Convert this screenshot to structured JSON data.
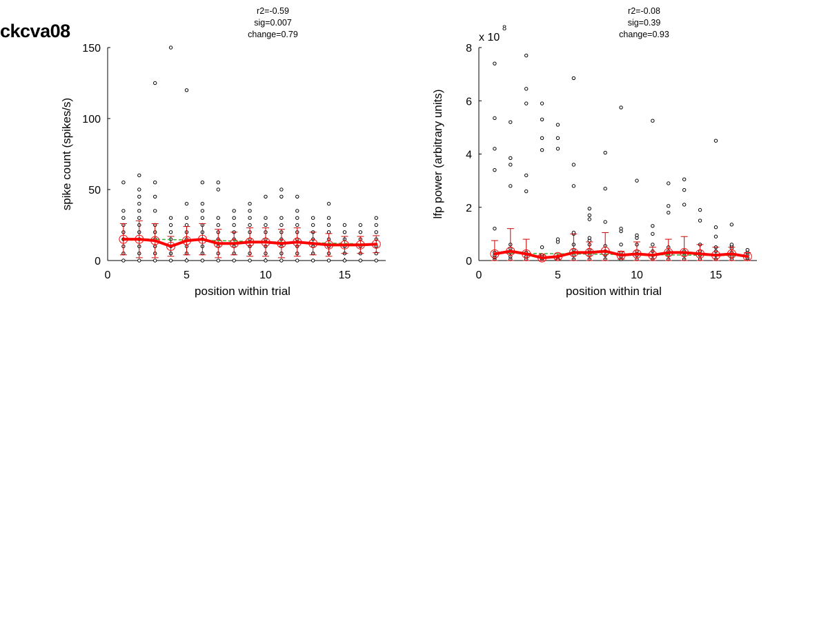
{
  "figure_label": "ckcva08",
  "chart_data": [
    {
      "type": "scatter",
      "title_lines": [
        "r2=-0.59",
        "sig=0.007",
        "change=0.79"
      ],
      "xlabel": "position within trial",
      "ylabel": "spike count (spikes/s)",
      "exponent_label": "",
      "xlim": [
        0,
        17.6
      ],
      "ylim": [
        0,
        150
      ],
      "xticks": [
        0,
        5,
        10,
        15
      ],
      "yticks": [
        0,
        50,
        100,
        150
      ],
      "grid": false,
      "colors": {
        "points": "#000000",
        "mean": "#ff0000",
        "error": "#cc0000",
        "fit": "#2fb52f"
      },
      "points": [
        {
          "x": 1,
          "y": [
            0,
            5,
            10,
            15,
            20,
            25,
            30,
            35,
            55
          ]
        },
        {
          "x": 2,
          "y": [
            0,
            5,
            10,
            15,
            20,
            25,
            30,
            35,
            40,
            45,
            50,
            60
          ]
        },
        {
          "x": 3,
          "y": [
            0,
            5,
            10,
            15,
            20,
            25,
            35,
            45,
            55,
            125
          ]
        },
        {
          "x": 4,
          "y": [
            0,
            5,
            10,
            15,
            20,
            25,
            30,
            150
          ]
        },
        {
          "x": 5,
          "y": [
            0,
            5,
            10,
            15,
            20,
            25,
            30,
            40,
            120
          ]
        },
        {
          "x": 6,
          "y": [
            0,
            5,
            10,
            15,
            20,
            25,
            30,
            35,
            40,
            55
          ]
        },
        {
          "x": 7,
          "y": [
            0,
            5,
            10,
            15,
            20,
            25,
            30,
            50,
            55
          ]
        },
        {
          "x": 8,
          "y": [
            0,
            5,
            10,
            15,
            20,
            25,
            30,
            35
          ]
        },
        {
          "x": 9,
          "y": [
            0,
            5,
            10,
            15,
            20,
            25,
            30,
            35,
            40
          ]
        },
        {
          "x": 10,
          "y": [
            0,
            5,
            10,
            15,
            20,
            25,
            30,
            45
          ]
        },
        {
          "x": 11,
          "y": [
            0,
            5,
            10,
            15,
            20,
            25,
            30,
            45,
            50
          ]
        },
        {
          "x": 12,
          "y": [
            0,
            5,
            10,
            15,
            20,
            25,
            30,
            35,
            45
          ]
        },
        {
          "x": 13,
          "y": [
            0,
            5,
            10,
            15,
            20,
            25,
            30
          ]
        },
        {
          "x": 14,
          "y": [
            0,
            5,
            10,
            15,
            20,
            25,
            30,
            40
          ]
        },
        {
          "x": 15,
          "y": [
            0,
            5,
            10,
            15,
            20,
            25
          ]
        },
        {
          "x": 16,
          "y": [
            0,
            5,
            10,
            15,
            20,
            25
          ]
        },
        {
          "x": 17,
          "y": [
            0,
            5,
            10,
            15,
            20,
            25,
            30
          ]
        }
      ],
      "mean": [
        15,
        15,
        14,
        10,
        14,
        15,
        12,
        12,
        13,
        13,
        12,
        13,
        12,
        11,
        11,
        11,
        11.5
      ],
      "error": [
        11,
        13,
        12,
        7,
        10,
        11,
        10,
        8,
        10,
        10,
        10,
        10,
        8,
        8,
        6,
        6,
        6
      ],
      "fit": {
        "x": [
          1,
          17
        ],
        "y": [
          15.5,
          11.5
        ]
      }
    },
    {
      "type": "scatter",
      "title_lines": [
        "r2=-0.08",
        "sig=0.39",
        "change=0.93"
      ],
      "xlabel": "position within trial",
      "ylabel": "lfp power (arbitrary units)",
      "exponent_label": "x 10",
      "exponent_power": "8",
      "xlim": [
        0,
        17.6
      ],
      "ylim": [
        0,
        8
      ],
      "xticks": [
        0,
        5,
        10,
        15
      ],
      "yticks": [
        0,
        2,
        4,
        6,
        8
      ],
      "grid": false,
      "colors": {
        "points": "#000000",
        "mean": "#ff0000",
        "error": "#cc0000",
        "fit": "#2fb52f"
      },
      "points": [
        {
          "x": 1,
          "y": [
            0.05,
            0.12,
            0.2,
            0.3,
            1.2,
            3.4,
            4.2,
            5.35,
            7.4
          ]
        },
        {
          "x": 2,
          "y": [
            0.05,
            0.15,
            0.3,
            0.45,
            0.6,
            2.8,
            3.6,
            3.85,
            5.2
          ]
        },
        {
          "x": 3,
          "y": [
            0.05,
            0.15,
            0.3,
            2.6,
            3.2,
            5.9,
            6.45,
            7.7
          ]
        },
        {
          "x": 4,
          "y": [
            0.05,
            0.1,
            0.2,
            0.5,
            4.15,
            4.6,
            5.3,
            5.9
          ]
        },
        {
          "x": 5,
          "y": [
            0.05,
            0.15,
            0.7,
            0.8,
            4.2,
            4.6,
            5.1
          ]
        },
        {
          "x": 6,
          "y": [
            0.05,
            0.2,
            0.4,
            0.6,
            1.0,
            1.05,
            2.8,
            3.6,
            6.85
          ]
        },
        {
          "x": 7,
          "y": [
            0.05,
            0.2,
            0.4,
            0.6,
            0.75,
            0.85,
            1.55,
            1.7,
            1.95
          ]
        },
        {
          "x": 8,
          "y": [
            0.05,
            0.2,
            0.35,
            0.55,
            1.45,
            2.7,
            4.05
          ]
        },
        {
          "x": 9,
          "y": [
            0.05,
            0.15,
            0.3,
            0.6,
            1.1,
            1.2,
            5.75
          ]
        },
        {
          "x": 10,
          "y": [
            0.05,
            0.2,
            0.35,
            0.6,
            0.85,
            0.95,
            3.0
          ]
        },
        {
          "x": 11,
          "y": [
            0.05,
            0.2,
            0.35,
            0.6,
            1.0,
            1.3,
            5.25
          ]
        },
        {
          "x": 12,
          "y": [
            0.05,
            0.2,
            0.35,
            0.5,
            1.8,
            2.05,
            2.9
          ]
        },
        {
          "x": 13,
          "y": [
            0.05,
            0.2,
            0.35,
            2.1,
            2.65,
            3.05
          ]
        },
        {
          "x": 14,
          "y": [
            0.05,
            0.2,
            0.35,
            0.6,
            1.5,
            1.9
          ]
        },
        {
          "x": 15,
          "y": [
            0.05,
            0.2,
            0.35,
            0.5,
            0.9,
            1.25,
            4.5
          ]
        },
        {
          "x": 16,
          "y": [
            0.05,
            0.15,
            0.3,
            0.45,
            0.55,
            0.6,
            1.35
          ]
        },
        {
          "x": 17,
          "y": [
            0.05,
            0.1,
            0.2,
            0.3,
            0.4
          ]
        }
      ],
      "mean": [
        0.25,
        0.35,
        0.25,
        0.1,
        0.15,
        0.3,
        0.3,
        0.35,
        0.2,
        0.25,
        0.2,
        0.3,
        0.3,
        0.25,
        0.2,
        0.25,
        0.15
      ],
      "error": [
        0.5,
        0.85,
        0.55,
        0.1,
        0.1,
        0.7,
        0.4,
        0.7,
        0.15,
        0.45,
        0.3,
        0.5,
        0.6,
        0.35,
        0.3,
        0.25,
        0.15
      ],
      "fit": {
        "x": [
          1,
          17
        ],
        "y": [
          0.28,
          0.18
        ]
      }
    }
  ]
}
